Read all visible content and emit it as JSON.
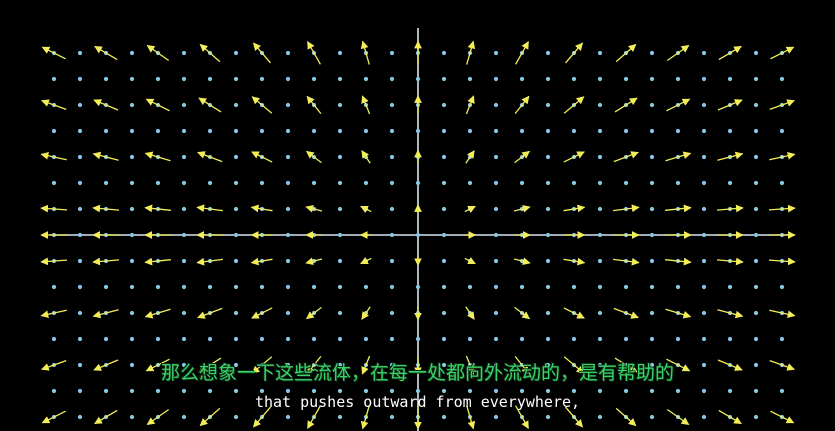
{
  "scene": {
    "background_color": "#000000",
    "axis_color": "#d8e6f0",
    "grid_dot_color": "#87c6e6",
    "arrow_color": "#f2ee5a",
    "field": "outward radial flow from the origin",
    "x_range": [
      -7,
      7
    ],
    "y_range": [
      -3,
      3
    ]
  },
  "subtitles": {
    "chinese": "那么想象一下这些流体，在每一处都向外流动的，是有帮助的",
    "english": "that pushes outward from everywhere,",
    "chinese_color": "#39d36a",
    "english_color": "#ffffff"
  }
}
